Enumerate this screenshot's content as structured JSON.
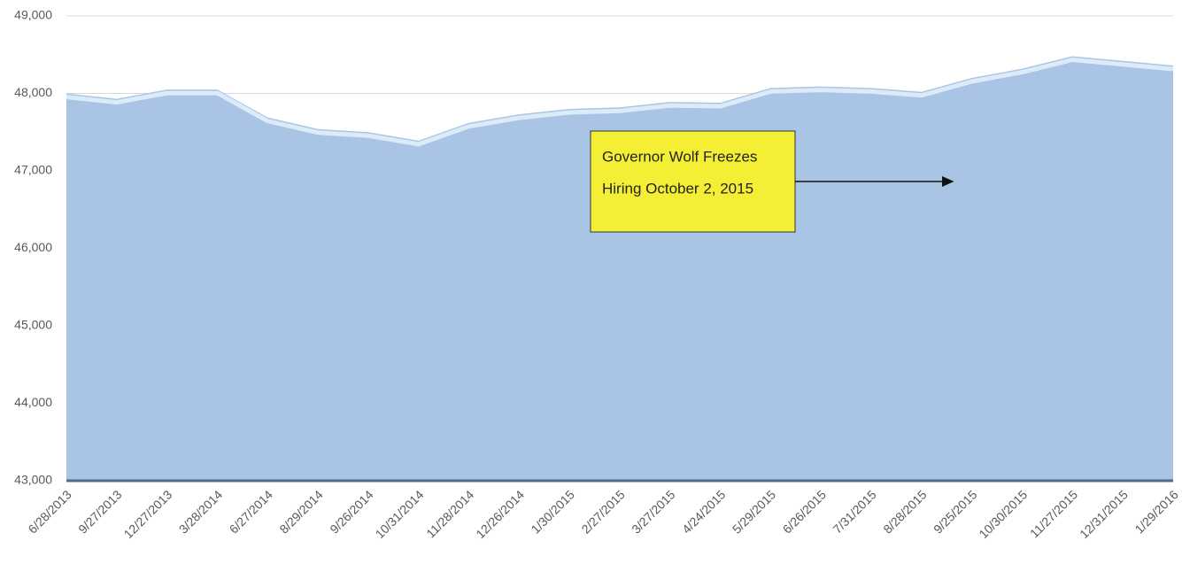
{
  "chart_data": {
    "type": "area",
    "categories": [
      "6/28/2013",
      "9/27/2013",
      "12/27/2013",
      "3/28/2014",
      "6/27/2014",
      "8/29/2014",
      "9/26/2014",
      "10/31/2014",
      "11/28/2014",
      "12/26/2014",
      "1/30/2015",
      "2/27/2015",
      "3/27/2015",
      "4/24/2015",
      "5/29/2015",
      "6/26/2015",
      "7/31/2015",
      "8/28/2015",
      "9/25/2015",
      "10/30/2015",
      "11/27/2015",
      "12/31/2015",
      "1/29/2016"
    ],
    "values": [
      48000,
      47930,
      48050,
      48050,
      47690,
      47540,
      47500,
      47390,
      47620,
      47730,
      47800,
      47820,
      47890,
      47880,
      48070,
      48090,
      48070,
      48020,
      48200,
      48320,
      48480,
      48420,
      48360
    ],
    "color": "#a9c4e4",
    "ylim": [
      43000,
      49000
    ],
    "yticks": [
      {
        "value": 43000,
        "label": "43,000"
      },
      {
        "value": 44000,
        "label": "44,000"
      },
      {
        "value": 45000,
        "label": "45,000"
      },
      {
        "value": 46000,
        "label": "46,000"
      },
      {
        "value": 47000,
        "label": "47,000"
      },
      {
        "value": 48000,
        "label": "48,000"
      },
      {
        "value": 49000,
        "label": "49,000"
      }
    ],
    "grid": true,
    "annotation": {
      "lines": [
        "Governor Wolf Freezes",
        "Hiring October 2, 2015"
      ]
    }
  }
}
